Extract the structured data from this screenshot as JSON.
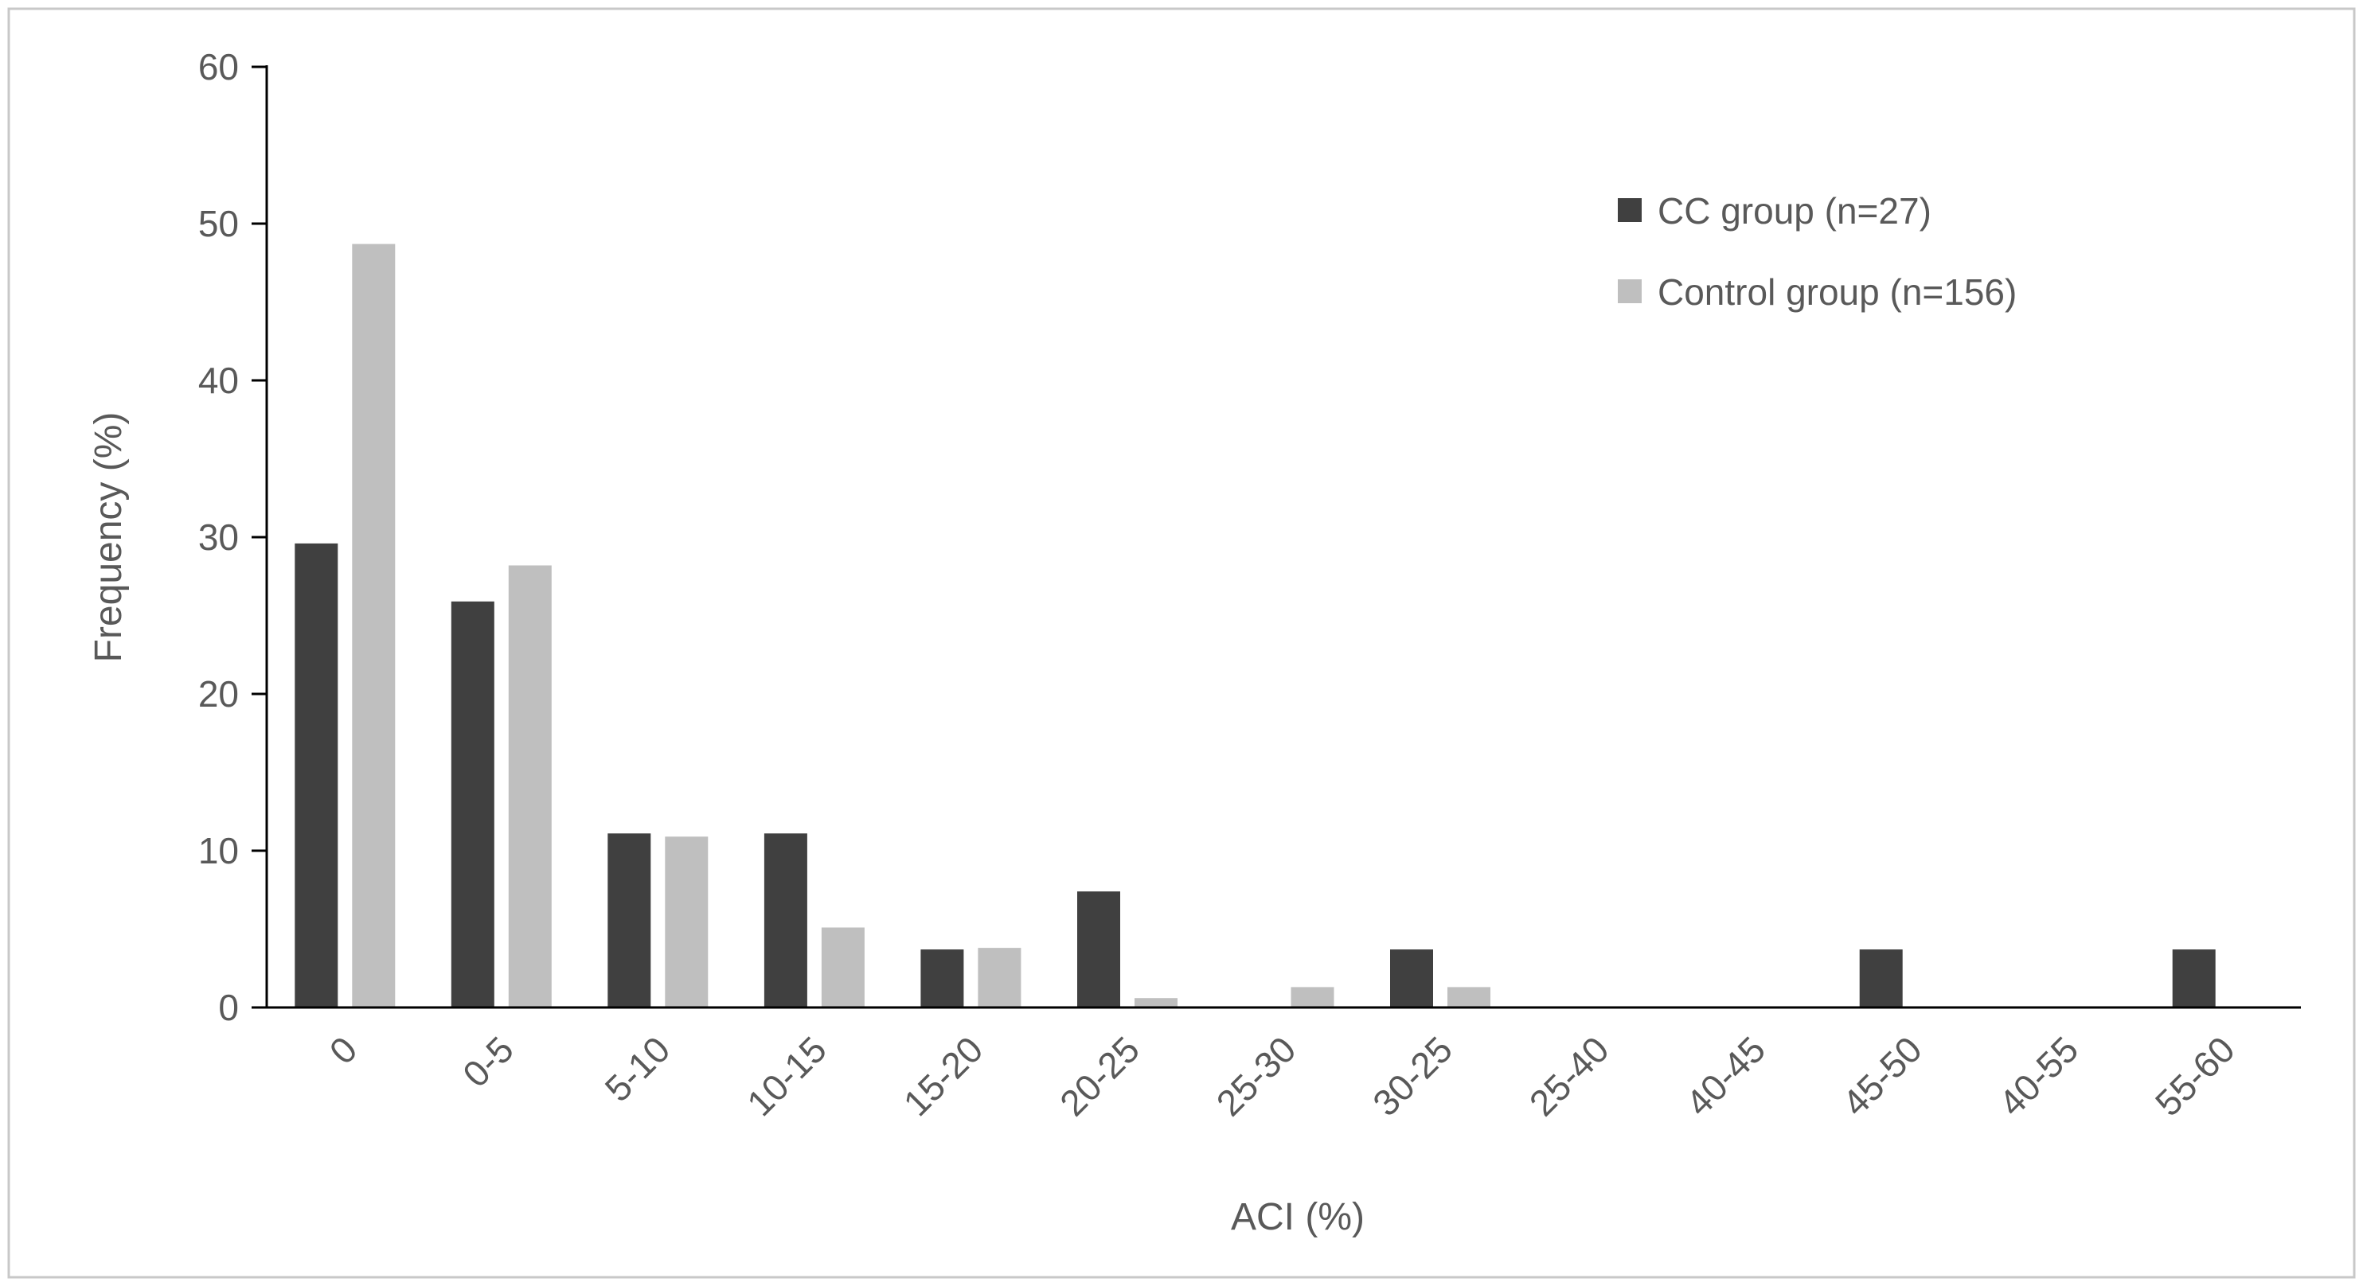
{
  "figure": {
    "background": "#ffffff",
    "border_color": "#c8c8c8"
  },
  "chart_data": {
    "type": "bar",
    "title": "",
    "xlabel": "ACI (%)",
    "ylabel": "Frequency (%)",
    "ylim": [
      0,
      60
    ],
    "ytick_step": 10,
    "yticks": [
      0,
      10,
      20,
      30,
      40,
      50,
      60
    ],
    "categories": [
      "0",
      "0-5",
      "5-10",
      "10-15",
      "15-20",
      "20-25",
      "25-30",
      "30-25",
      "25-40",
      "40-45",
      "45-50",
      "40-55",
      "55-60"
    ],
    "series": [
      {
        "name": "CC group (n=27)",
        "color": "#404040",
        "values": [
          29.6,
          25.9,
          11.1,
          11.1,
          3.7,
          7.4,
          0,
          3.7,
          0,
          0,
          3.7,
          0,
          3.7
        ]
      },
      {
        "name": "Control group (n=156)",
        "color": "#bfbfbf",
        "values": [
          48.7,
          28.2,
          10.9,
          5.1,
          3.8,
          0.6,
          1.3,
          1.3,
          0,
          0,
          0,
          0,
          0
        ]
      }
    ],
    "legend_position": "top-right",
    "grid": false,
    "axis_color": "#000000",
    "text_color": "#595959",
    "x_tick_label_rotation": 45
  }
}
